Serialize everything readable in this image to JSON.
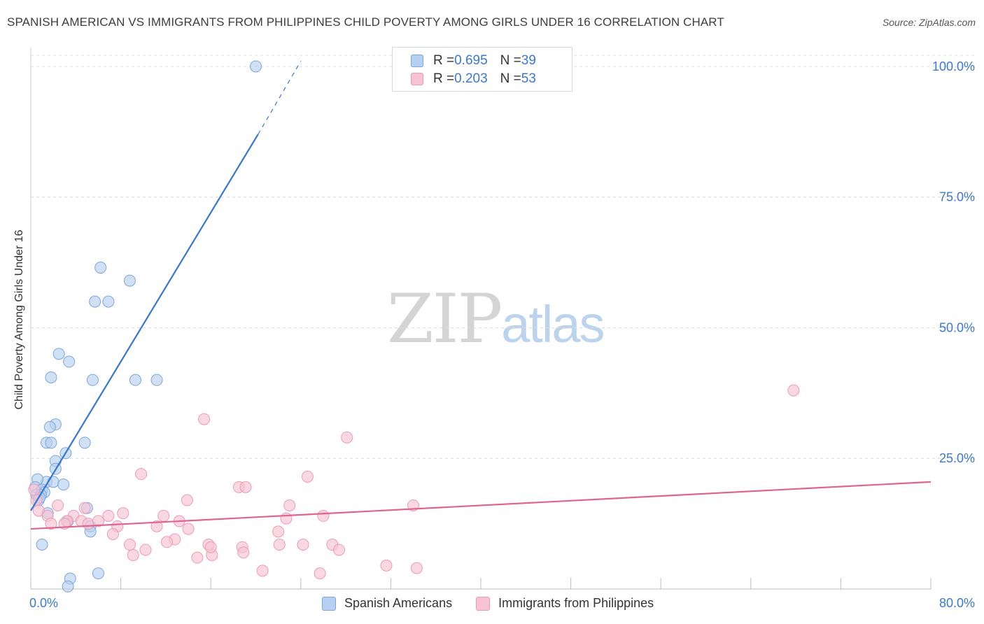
{
  "title": "SPANISH AMERICAN VS IMMIGRANTS FROM PHILIPPINES CHILD POVERTY AMONG GIRLS UNDER 16 CORRELATION CHART",
  "source": "Source: ZipAtlas.com",
  "watermark": {
    "zip": "ZIP",
    "atlas": "atlas"
  },
  "legend": {
    "series": [
      {
        "r_label": "R = ",
        "r_value": "0.695",
        "n_label": "N = ",
        "n_value": "39"
      },
      {
        "r_label": "R = ",
        "r_value": "0.203",
        "n_label": "N = ",
        "n_value": "53"
      }
    ]
  },
  "colors": {
    "blue_fill": "#b7cff0",
    "blue_stroke": "#7aa6e0",
    "blue_line": "#3576d2",
    "pink_fill": "#f7c3d2",
    "pink_stroke": "#ee9ab4",
    "pink_line": "#e0648f",
    "tick_label": "#3a78d4",
    "grid": "#dcdcdc"
  },
  "chart_data": {
    "type": "scatter",
    "title": "SPANISH AMERICAN VS IMMIGRANTS FROM PHILIPPINES CHILD POVERTY AMONG GIRLS UNDER 16 CORRELATION CHART",
    "xlabel": "",
    "ylabel": "Child Poverty Among Girls Under 16",
    "xlim": [
      0,
      80
    ],
    "ylim": [
      0,
      102
    ],
    "x_tick_labels": [
      "0.0%",
      "80.0%"
    ],
    "x_minor_ticks": [
      0,
      8,
      16,
      24,
      32,
      40,
      48,
      56,
      64,
      72,
      80
    ],
    "y_ticks": [
      25,
      50,
      75,
      100
    ],
    "y_tick_labels": [
      "25.0%",
      "50.0%",
      "75.0%",
      "100.0%"
    ],
    "grid": true,
    "series": [
      {
        "name": "Spanish Americans",
        "color": "blue",
        "points": [
          [
            20,
            100
          ],
          [
            6.2,
            61.5
          ],
          [
            8.8,
            59
          ],
          [
            5.7,
            55
          ],
          [
            6.9,
            55
          ],
          [
            2.5,
            45
          ],
          [
            3.4,
            43.5
          ],
          [
            1.8,
            40.5
          ],
          [
            5.5,
            40
          ],
          [
            9.3,
            40
          ],
          [
            11.2,
            40
          ],
          [
            2.2,
            31.5
          ],
          [
            1.7,
            31
          ],
          [
            1.4,
            28
          ],
          [
            1.8,
            28
          ],
          [
            4.8,
            28
          ],
          [
            3.1,
            26
          ],
          [
            2.2,
            24.5
          ],
          [
            2.2,
            23
          ],
          [
            1.4,
            20.5
          ],
          [
            2.0,
            20.5
          ],
          [
            2.9,
            20
          ],
          [
            0.6,
            21
          ],
          [
            0.4,
            19.5
          ],
          [
            1.0,
            19
          ],
          [
            1.2,
            18.5
          ],
          [
            0.5,
            18
          ],
          [
            0.9,
            18
          ],
          [
            0.7,
            17
          ],
          [
            1.5,
            14.5
          ],
          [
            3.3,
            13
          ],
          [
            5.0,
            15.5
          ],
          [
            5.3,
            12
          ],
          [
            5.3,
            11
          ],
          [
            1.0,
            8.5
          ],
          [
            6.0,
            3
          ],
          [
            3.5,
            2
          ],
          [
            3.3,
            0.5
          ],
          [
            0.8,
            17.5
          ]
        ]
      },
      {
        "name": "Immigrants from Philippines",
        "color": "pink",
        "points": [
          [
            67.8,
            38
          ],
          [
            15.4,
            32.5
          ],
          [
            28.1,
            29
          ],
          [
            9.8,
            22
          ],
          [
            24.6,
            21.5
          ],
          [
            18.5,
            19.5
          ],
          [
            19.1,
            19.5
          ],
          [
            0.3,
            19
          ],
          [
            0.5,
            17
          ],
          [
            13.9,
            17
          ],
          [
            23.0,
            16
          ],
          [
            34.0,
            16
          ],
          [
            2.4,
            16
          ],
          [
            4.8,
            15.5
          ],
          [
            0.7,
            15
          ],
          [
            8.2,
            14.5
          ],
          [
            3.8,
            14
          ],
          [
            6.9,
            14
          ],
          [
            1.5,
            14
          ],
          [
            11.8,
            14
          ],
          [
            26.0,
            14
          ],
          [
            22.7,
            13.5
          ],
          [
            13.2,
            13
          ],
          [
            3.2,
            13
          ],
          [
            4.5,
            13
          ],
          [
            5.1,
            12.5
          ],
          [
            6.0,
            13
          ],
          [
            1.8,
            12.5
          ],
          [
            7.7,
            12
          ],
          [
            11.2,
            12
          ],
          [
            14.0,
            11.5
          ],
          [
            22.0,
            11
          ],
          [
            7.3,
            10.5
          ],
          [
            12.8,
            9.5
          ],
          [
            12.1,
            9
          ],
          [
            8.8,
            8.5
          ],
          [
            15.8,
            8.5
          ],
          [
            18.8,
            8
          ],
          [
            22.1,
            8.5
          ],
          [
            24.2,
            8.5
          ],
          [
            26.8,
            8.5
          ],
          [
            27.4,
            7.5
          ],
          [
            10.2,
            7.5
          ],
          [
            18.9,
            7
          ],
          [
            9.1,
            6.5
          ],
          [
            14.8,
            6
          ],
          [
            16.1,
            6.5
          ],
          [
            31.6,
            4.5
          ],
          [
            34.3,
            4
          ],
          [
            20.6,
            3.5
          ],
          [
            25.7,
            3
          ],
          [
            16.0,
            8
          ],
          [
            3.0,
            12.5
          ]
        ]
      }
    ],
    "trendlines": [
      {
        "series": "Spanish Americans",
        "x_start": 0,
        "y_start": 15,
        "x_solid_end": 20.2,
        "y_solid_end": 87,
        "x_end": 24,
        "y_end": 101
      },
      {
        "series": "Immigrants from Philippines",
        "x_start": 0,
        "y_start": 11.5,
        "x_end": 80,
        "y_end": 20.5
      }
    ]
  },
  "bottom_legend": [
    {
      "label": "Spanish Americans",
      "color": "blue"
    },
    {
      "label": "Immigrants from Philippines",
      "color": "pink"
    }
  ]
}
